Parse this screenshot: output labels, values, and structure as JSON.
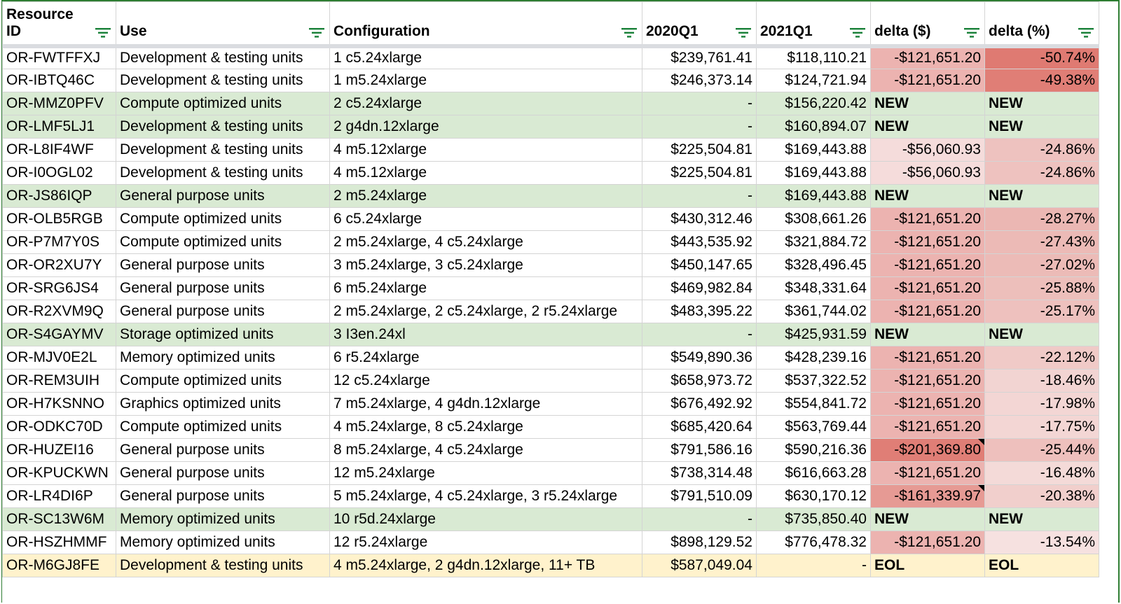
{
  "columns": [
    {
      "label_line1": "Resource",
      "label_line2": "ID",
      "align": "left"
    },
    {
      "label_line1": "",
      "label_line2": "Use",
      "align": "left"
    },
    {
      "label_line1": "",
      "label_line2": "Configuration",
      "align": "left"
    },
    {
      "label_line1": "",
      "label_line2": "2020Q1",
      "align": "right"
    },
    {
      "label_line1": "",
      "label_line2": "2021Q1",
      "align": "right"
    },
    {
      "label_line1": "",
      "label_line2": "delta ($)",
      "align": "right"
    },
    {
      "label_line1": "",
      "label_line2": "delta (%)",
      "align": "right"
    }
  ],
  "rows": [
    {
      "id": "OR-FWTFFXJ",
      "use": "Development & testing units",
      "config": "1 c5.24xlarge",
      "q2020": "$239,761.41",
      "q2021": "$118,110.21",
      "delta_usd": "-$121,651.20",
      "delta_pct": "-50.74%",
      "status": "normal",
      "usd_color": "#ecb3b0",
      "pct_color": "#df7a72",
      "note": false
    },
    {
      "id": "OR-IBTQ46C",
      "use": "Development & testing units",
      "config": "1 m5.24xlarge",
      "q2020": "$246,373.14",
      "q2021": "$124,721.94",
      "delta_usd": "-$121,651.20",
      "delta_pct": "-49.38%",
      "status": "normal",
      "usd_color": "#ecb3b0",
      "pct_color": "#e07e76",
      "note": false
    },
    {
      "id": "OR-MMZ0PFV",
      "use": "Compute optimized units",
      "config": "2 c5.24xlarge",
      "q2020": "-",
      "q2021": "$156,220.42",
      "delta_usd": "NEW",
      "delta_pct": "NEW",
      "status": "new",
      "usd_color": "",
      "pct_color": "",
      "note": false
    },
    {
      "id": "OR-LMF5LJ1",
      "use": "Development & testing units",
      "config": "2 g4dn.12xlarge",
      "q2020": "-",
      "q2021": "$160,894.07",
      "delta_usd": "NEW",
      "delta_pct": "NEW",
      "status": "new",
      "usd_color": "",
      "pct_color": "",
      "note": false
    },
    {
      "id": "OR-L8IF4WF",
      "use": "Development & testing units",
      "config": "4 m5.12xlarge",
      "q2020": "$225,504.81",
      "q2021": "$169,443.88",
      "delta_usd": "-$56,060.93",
      "delta_pct": "-24.86%",
      "status": "normal",
      "usd_color": "#f5dcdb",
      "pct_color": "#eec2bf",
      "note": false
    },
    {
      "id": "OR-I0OGL02",
      "use": "Development & testing units",
      "config": "4 m5.12xlarge",
      "q2020": "$225,504.81",
      "q2021": "$169,443.88",
      "delta_usd": "-$56,060.93",
      "delta_pct": "-24.86%",
      "status": "normal",
      "usd_color": "#f5dcdb",
      "pct_color": "#eec2bf",
      "note": false
    },
    {
      "id": "OR-JS86IQP",
      "use": "General purpose units",
      "config": "2 m5.24xlarge",
      "q2020": "-",
      "q2021": "$169,443.88",
      "delta_usd": "NEW",
      "delta_pct": "NEW",
      "status": "new",
      "usd_color": "",
      "pct_color": "",
      "note": false
    },
    {
      "id": "OR-OLB5RGB",
      "use": "Compute optimized units",
      "config": "6 c5.24xlarge",
      "q2020": "$430,312.46",
      "q2021": "$308,661.26",
      "delta_usd": "-$121,651.20",
      "delta_pct": "-28.27%",
      "status": "normal",
      "usd_color": "#ecb3b0",
      "pct_color": "#ebb7b3",
      "note": false
    },
    {
      "id": "OR-P7M7Y0S",
      "use": "Compute optimized units",
      "config": "2 m5.24xlarge, 4 c5.24xlarge",
      "q2020": "$443,535.92",
      "q2021": "$321,884.72",
      "delta_usd": "-$121,651.20",
      "delta_pct": "-27.43%",
      "status": "normal",
      "usd_color": "#ecb3b0",
      "pct_color": "#ecbab6",
      "note": false
    },
    {
      "id": "OR-OR2XU7Y",
      "use": "General purpose units",
      "config": "3 m5.24xlarge, 3 c5.24xlarge",
      "q2020": "$450,147.65",
      "q2021": "$328,496.45",
      "delta_usd": "-$121,651.20",
      "delta_pct": "-27.02%",
      "status": "normal",
      "usd_color": "#ecb3b0",
      "pct_color": "#ecbbb7",
      "note": false
    },
    {
      "id": "OR-SRG6JS4",
      "use": "General purpose units",
      "config": "6 m5.24xlarge",
      "q2020": "$469,982.84",
      "q2021": "$348,331.64",
      "delta_usd": "-$121,651.20",
      "delta_pct": "-25.88%",
      "status": "normal",
      "usd_color": "#ecb3b0",
      "pct_color": "#edbfbb",
      "note": false
    },
    {
      "id": "OR-R2XVM9Q",
      "use": "General purpose units",
      "config": "2 m5.24xlarge, 2 c5.24xlarge, 2 r5.24xlarge",
      "q2020": "$483,395.22",
      "q2021": "$361,744.02",
      "delta_usd": "-$121,651.20",
      "delta_pct": "-25.17%",
      "status": "normal",
      "usd_color": "#ecb3b0",
      "pct_color": "#eec1be",
      "note": false
    },
    {
      "id": "OR-S4GAYMV",
      "use": "Storage optimized units",
      "config": "3 I3en.24xl",
      "q2020": "-",
      "q2021": "$425,931.59",
      "delta_usd": "NEW",
      "delta_pct": "NEW",
      "status": "new",
      "usd_color": "",
      "pct_color": "",
      "note": false
    },
    {
      "id": "OR-MJV0E2L",
      "use": "Memory optimized units",
      "config": "6 r5.24xlarge",
      "q2020": "$549,890.36",
      "q2021": "$428,239.16",
      "delta_usd": "-$121,651.20",
      "delta_pct": "-22.12%",
      "status": "normal",
      "usd_color": "#ecb3b0",
      "pct_color": "#f0cac7",
      "note": false
    },
    {
      "id": "OR-REM3UIH",
      "use": "Compute optimized units",
      "config": "12 c5.24xlarge",
      "q2020": "$658,973.72",
      "q2021": "$537,322.52",
      "delta_usd": "-$121,651.20",
      "delta_pct": "-18.46%",
      "status": "normal",
      "usd_color": "#ecb3b0",
      "pct_color": "#f2d4d2",
      "note": false
    },
    {
      "id": "OR-H7KSNNO",
      "use": "Graphics optimized units",
      "config": "7 m5.24xlarge, 4 g4dn.12xlarge",
      "q2020": "$676,492.92",
      "q2021": "$554,841.72",
      "delta_usd": "-$121,651.20",
      "delta_pct": "-17.98%",
      "status": "normal",
      "usd_color": "#ecb3b0",
      "pct_color": "#f3d6d4",
      "note": false
    },
    {
      "id": "OR-ODKC70D",
      "use": "Compute optimized units",
      "config": "4 m5.24xlarge, 8 c5.24xlarge",
      "q2020": "$685,420.64",
      "q2021": "$563,769.44",
      "delta_usd": "-$121,651.20",
      "delta_pct": "-17.75%",
      "status": "normal",
      "usd_color": "#ecb3b0",
      "pct_color": "#f3d6d4",
      "note": false
    },
    {
      "id": "OR-HUZEI16",
      "use": "General purpose units",
      "config": "8 m5.24xlarge, 4 c5.24xlarge",
      "q2020": "$791,586.16",
      "q2021": "$590,216.36",
      "delta_usd": "-$201,369.80",
      "delta_pct": "-25.44%",
      "status": "normal",
      "usd_color": "#e07e76",
      "pct_color": "#eec0bd",
      "note": true
    },
    {
      "id": "OR-KPUCKWN",
      "use": "General purpose units",
      "config": "12 m5.24xlarge",
      "q2020": "$738,314.48",
      "q2021": "$616,663.28",
      "delta_usd": "-$121,651.20",
      "delta_pct": "-16.48%",
      "status": "normal",
      "usd_color": "#ecb3b0",
      "pct_color": "#f4dad8",
      "note": false
    },
    {
      "id": "OR-LR4DI6P",
      "use": "General purpose units",
      "config": "5 m5.24xlarge, 4 c5.24xlarge, 3 r5.24xlarge",
      "q2020": "$791,510.09",
      "q2021": "$630,170.12",
      "delta_usd": "-$161,339.97",
      "delta_pct": "-20.38%",
      "status": "normal",
      "usd_color": "#e69a94",
      "pct_color": "#f1cfcc",
      "note": true
    },
    {
      "id": "OR-SC13W6M",
      "use": "Memory optimized units",
      "config": "10 r5d.24xlarge",
      "q2020": "-",
      "q2021": "$735,850.40",
      "delta_usd": "NEW",
      "delta_pct": "NEW",
      "status": "new",
      "usd_color": "",
      "pct_color": "",
      "note": false
    },
    {
      "id": "OR-HSZHMMF",
      "use": "Memory optimized units",
      "config": "12 r5.24xlarge",
      "q2020": "$898,129.52",
      "q2021": "$776,478.32",
      "delta_usd": "-$121,651.20",
      "delta_pct": "-13.54%",
      "status": "normal",
      "usd_color": "#ecb3b0",
      "pct_color": "#f6e1e0",
      "note": false
    },
    {
      "id": "OR-M6GJ8FE",
      "use": "Development & testing units",
      "config": "4 m5.24xlarge, 2 g4dn.12xlarge, 11+ TB",
      "q2020": "$587,049.04",
      "q2021": "-",
      "delta_usd": "EOL",
      "delta_pct": "EOL",
      "status": "eol",
      "usd_color": "",
      "pct_color": "",
      "note": false
    }
  ],
  "colors": {
    "frame": "#2e7d32",
    "filter_icon": "#188038",
    "new_row": "#d9ead3",
    "eol_row": "#fff2cc"
  },
  "icons": {
    "filter": "filter-icon"
  }
}
